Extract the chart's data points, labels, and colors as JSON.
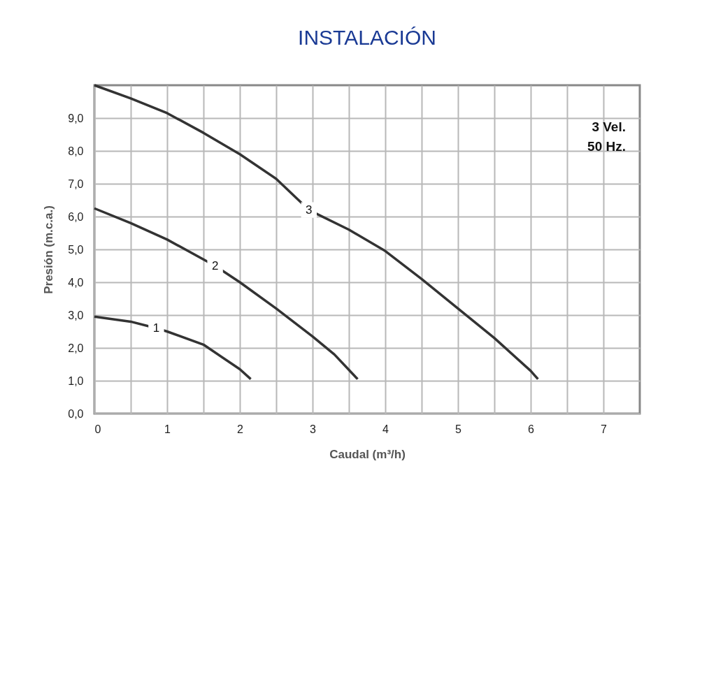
{
  "chart_data": {
    "type": "line",
    "title": "INSTALACIÓN",
    "xlabel": "Caudal (m³/h)",
    "ylabel": "Presión (m.c.a.)",
    "xlim": [
      0,
      7.5
    ],
    "ylim": [
      0,
      10
    ],
    "xticks": [
      0,
      {
        "value": 0.5,
        "label": null
      },
      1,
      {
        "value": 1.5,
        "label": null
      },
      2,
      {
        "value": 2.5,
        "label": null
      },
      3,
      {
        "value": 3.5,
        "label": null
      },
      4,
      {
        "value": 4.5,
        "label": null
      },
      5,
      {
        "value": 5.5,
        "label": null
      },
      6,
      {
        "value": 6.5,
        "label": null
      },
      7
    ],
    "yticks": [
      {
        "value": 0,
        "label": "0,0"
      },
      {
        "value": 1,
        "label": "1,0"
      },
      {
        "value": 2,
        "label": "2,0"
      },
      {
        "value": 3,
        "label": "3,0"
      },
      {
        "value": 4,
        "label": "4,0"
      },
      {
        "value": 5,
        "label": "5,0"
      },
      {
        "value": 6,
        "label": "6,0"
      },
      {
        "value": 7,
        "label": "7,0"
      },
      {
        "value": 8,
        "label": "8,0"
      },
      {
        "value": 9,
        "label": "9,0"
      }
    ],
    "grid": true,
    "marker": "none",
    "line_style": "solid",
    "series": [
      {
        "name": "1",
        "color": "#333333",
        "x": [
          0,
          0.5,
          0.85,
          1,
          1.5,
          2,
          2.15
        ],
        "values": [
          2.95,
          2.8,
          2.6,
          2.5,
          2.1,
          1.35,
          1.05
        ]
      },
      {
        "name": "2",
        "color": "#333333",
        "x": [
          0,
          0.5,
          1,
          1.66,
          2,
          2.5,
          3,
          3.3,
          3.62
        ],
        "values": [
          6.25,
          5.8,
          5.3,
          4.5,
          4.0,
          3.2,
          2.35,
          1.8,
          1.05
        ]
      },
      {
        "name": "3",
        "color": "#333333",
        "x": [
          0,
          0.5,
          1,
          1.5,
          2,
          2.5,
          2.95,
          3.5,
          4,
          4.5,
          5,
          5.5,
          6,
          6.1
        ],
        "values": [
          10.0,
          9.6,
          9.15,
          8.55,
          7.9,
          7.15,
          6.2,
          5.6,
          4.95,
          4.1,
          3.2,
          2.3,
          1.3,
          1.05
        ]
      }
    ],
    "annotations": [
      "3 Vel.",
      "50 Hz."
    ]
  }
}
